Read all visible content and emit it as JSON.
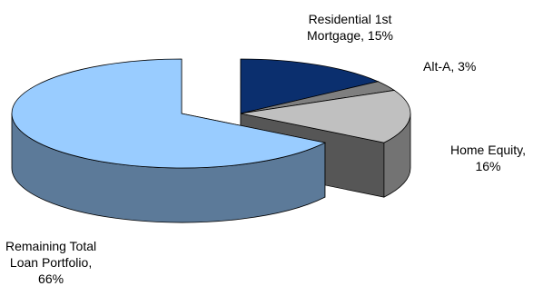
{
  "chart_data": {
    "type": "pie",
    "title": "",
    "slices": [
      {
        "label_lines": [
          "Residential 1st",
          "Mortgage, 15%"
        ],
        "value": 15,
        "color": "#0B2F6E",
        "exploded": true
      },
      {
        "label_lines": [
          "Alt-A, 3%"
        ],
        "value": 3,
        "color": "#7F7F7F",
        "exploded": true
      },
      {
        "label_lines": [
          "Home Equity,",
          "16%"
        ],
        "value": 16,
        "color": "#C0C0C0",
        "exploded": true
      },
      {
        "label_lines": [
          "Remaining Total",
          "Loan Portfolio,",
          "66%"
        ],
        "value": 66,
        "color": "#99CCFF",
        "exploded": false
      }
    ]
  }
}
